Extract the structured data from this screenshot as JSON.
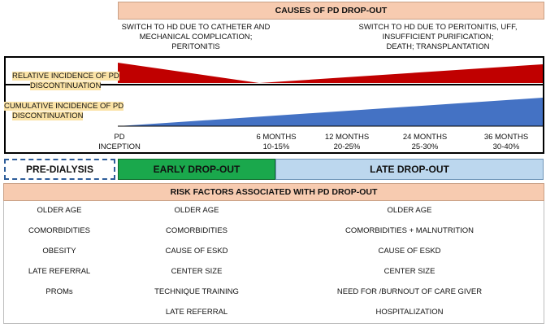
{
  "causes_header": "CAUSES OF PD DROP-OUT",
  "causes": {
    "early": [
      "SWITCH TO HD DUE TO CATHETER AND",
      "MECHANICAL COMPLICATION;",
      "PERITONITIS"
    ],
    "late": [
      "SWITCH TO HD DUE TO PERITONITIS, UFF,",
      "INSUFFICIENT PURIFICATION;",
      "DEATH; TRANSPLANTATION"
    ]
  },
  "relative_label": [
    "RELATIVE INCIDENCE OF PD",
    "DISCONTINUATION"
  ],
  "cumulative_label": [
    "CUMULATIVE INCIDENCE OF PD",
    "DISCONTINUATION"
  ],
  "colors": {
    "relative": "#c00000",
    "cumulative": "#4472c4",
    "early": "#1aa84c",
    "late": "#bcd7ee",
    "header": "#f7cbb0"
  },
  "timepoints": [
    {
      "label": "PD",
      "sub": "INCEPTION"
    },
    {
      "label": "6 MONTHS",
      "sub": "10-15%"
    },
    {
      "label": "12 MONTHS",
      "sub": "20-25%"
    },
    {
      "label": "24 MONTHS",
      "sub": "25-30%"
    },
    {
      "label": "36 MONTHS",
      "sub": "30-40%"
    }
  ],
  "phases": {
    "pre": "PRE-DIALYSIS",
    "early": "EARLY DROP-OUT",
    "late": "LATE DROP-OUT"
  },
  "risk_header": "RISK FACTORS ASSOCIATED WITH PD DROP-OUT",
  "risk": {
    "pre": [
      "OLDER AGE",
      "COMORBIDITIES",
      "OBESITY",
      "LATE REFERRAL",
      "PROMs"
    ],
    "early": [
      "OLDER AGE",
      "COMORBIDITIES",
      "CAUSE OF ESKD",
      "CENTER SIZE",
      "TECHNIQUE TRAINING",
      "LATE REFERRAL"
    ],
    "late": [
      "OLDER AGE",
      "COMORBIDITIES + MALNUTRITION",
      "CAUSE OF ESKD",
      "CENTER SIZE",
      "NEED FOR /BURNOUT OF CARE GIVER",
      "HOSPITALIZATION"
    ]
  }
}
